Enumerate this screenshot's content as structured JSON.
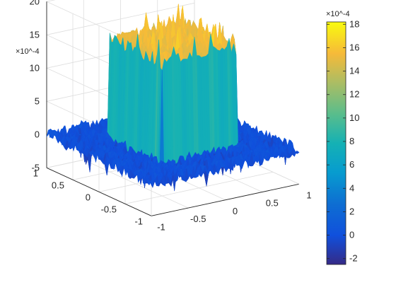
{
  "chart_data": {
    "type": "surface",
    "title": "",
    "xlabel": "",
    "ylabel": "",
    "zlabel": "",
    "x_range": [
      -1,
      1
    ],
    "y_range": [
      -1,
      1
    ],
    "zlim": [
      -5,
      20
    ],
    "z_unit_exponent": "×10^-4",
    "x_ticks": [
      "-1",
      "-0.5",
      "0",
      "0.5",
      "1"
    ],
    "y_ticks": [
      "-1",
      "-0.5",
      "0",
      "0.5",
      "1"
    ],
    "z_ticks": [
      "-5",
      "0",
      "5",
      "10",
      "15",
      "20"
    ],
    "plateau_region": {
      "x": [
        -0.5,
        0.5
      ],
      "y": [
        -0.5,
        0.5
      ]
    },
    "plateau_level": 15,
    "floor_level": 0,
    "colormap": "parula",
    "grid": true,
    "colorbar": {
      "placement": "right",
      "range": [
        -2.5,
        18.2
      ],
      "ticks": [
        "-2",
        "0",
        "2",
        "4",
        "6",
        "8",
        "10",
        "12",
        "14",
        "16",
        "18"
      ],
      "exponent": "×10^-4"
    }
  }
}
